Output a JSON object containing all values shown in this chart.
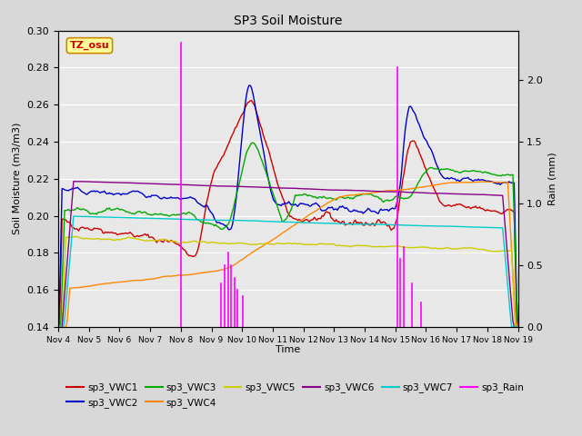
{
  "title": "SP3 Soil Moisture",
  "ylabel_left": "Soil Moisture (m3/m3)",
  "ylabel_right": "Rain (mm)",
  "xlabel": "Time",
  "ylim_left": [
    0.14,
    0.3
  ],
  "ylim_right": [
    0.0,
    2.4
  ],
  "x_tick_labels": [
    "Nov 4",
    "Nov 5",
    "Nov 6",
    "Nov 7",
    "Nov 8",
    "Nov 9",
    "Nov 10",
    "Nov 11",
    "Nov 12",
    "Nov 13",
    "Nov 14",
    "Nov 15",
    "Nov 16",
    "Nov 17",
    "Nov 18",
    "Nov 19"
  ],
  "background_color": "#e8e8e8",
  "grid_color": "#ffffff",
  "annotation_box_text": "TZ_osu",
  "annotation_box_facecolor": "#ffff99",
  "annotation_box_edgecolor": "#cc8800",
  "rain_color": "#ff00ff",
  "vwc1_color": "#cc0000",
  "vwc2_color": "#0000cc",
  "vwc3_color": "#00aa00",
  "vwc4_color": "#ff8800",
  "vwc5_color": "#cccc00",
  "vwc6_color": "#880088",
  "vwc7_color": "#00cccc",
  "figsize": [
    6.4,
    4.8
  ],
  "dpi": 100
}
